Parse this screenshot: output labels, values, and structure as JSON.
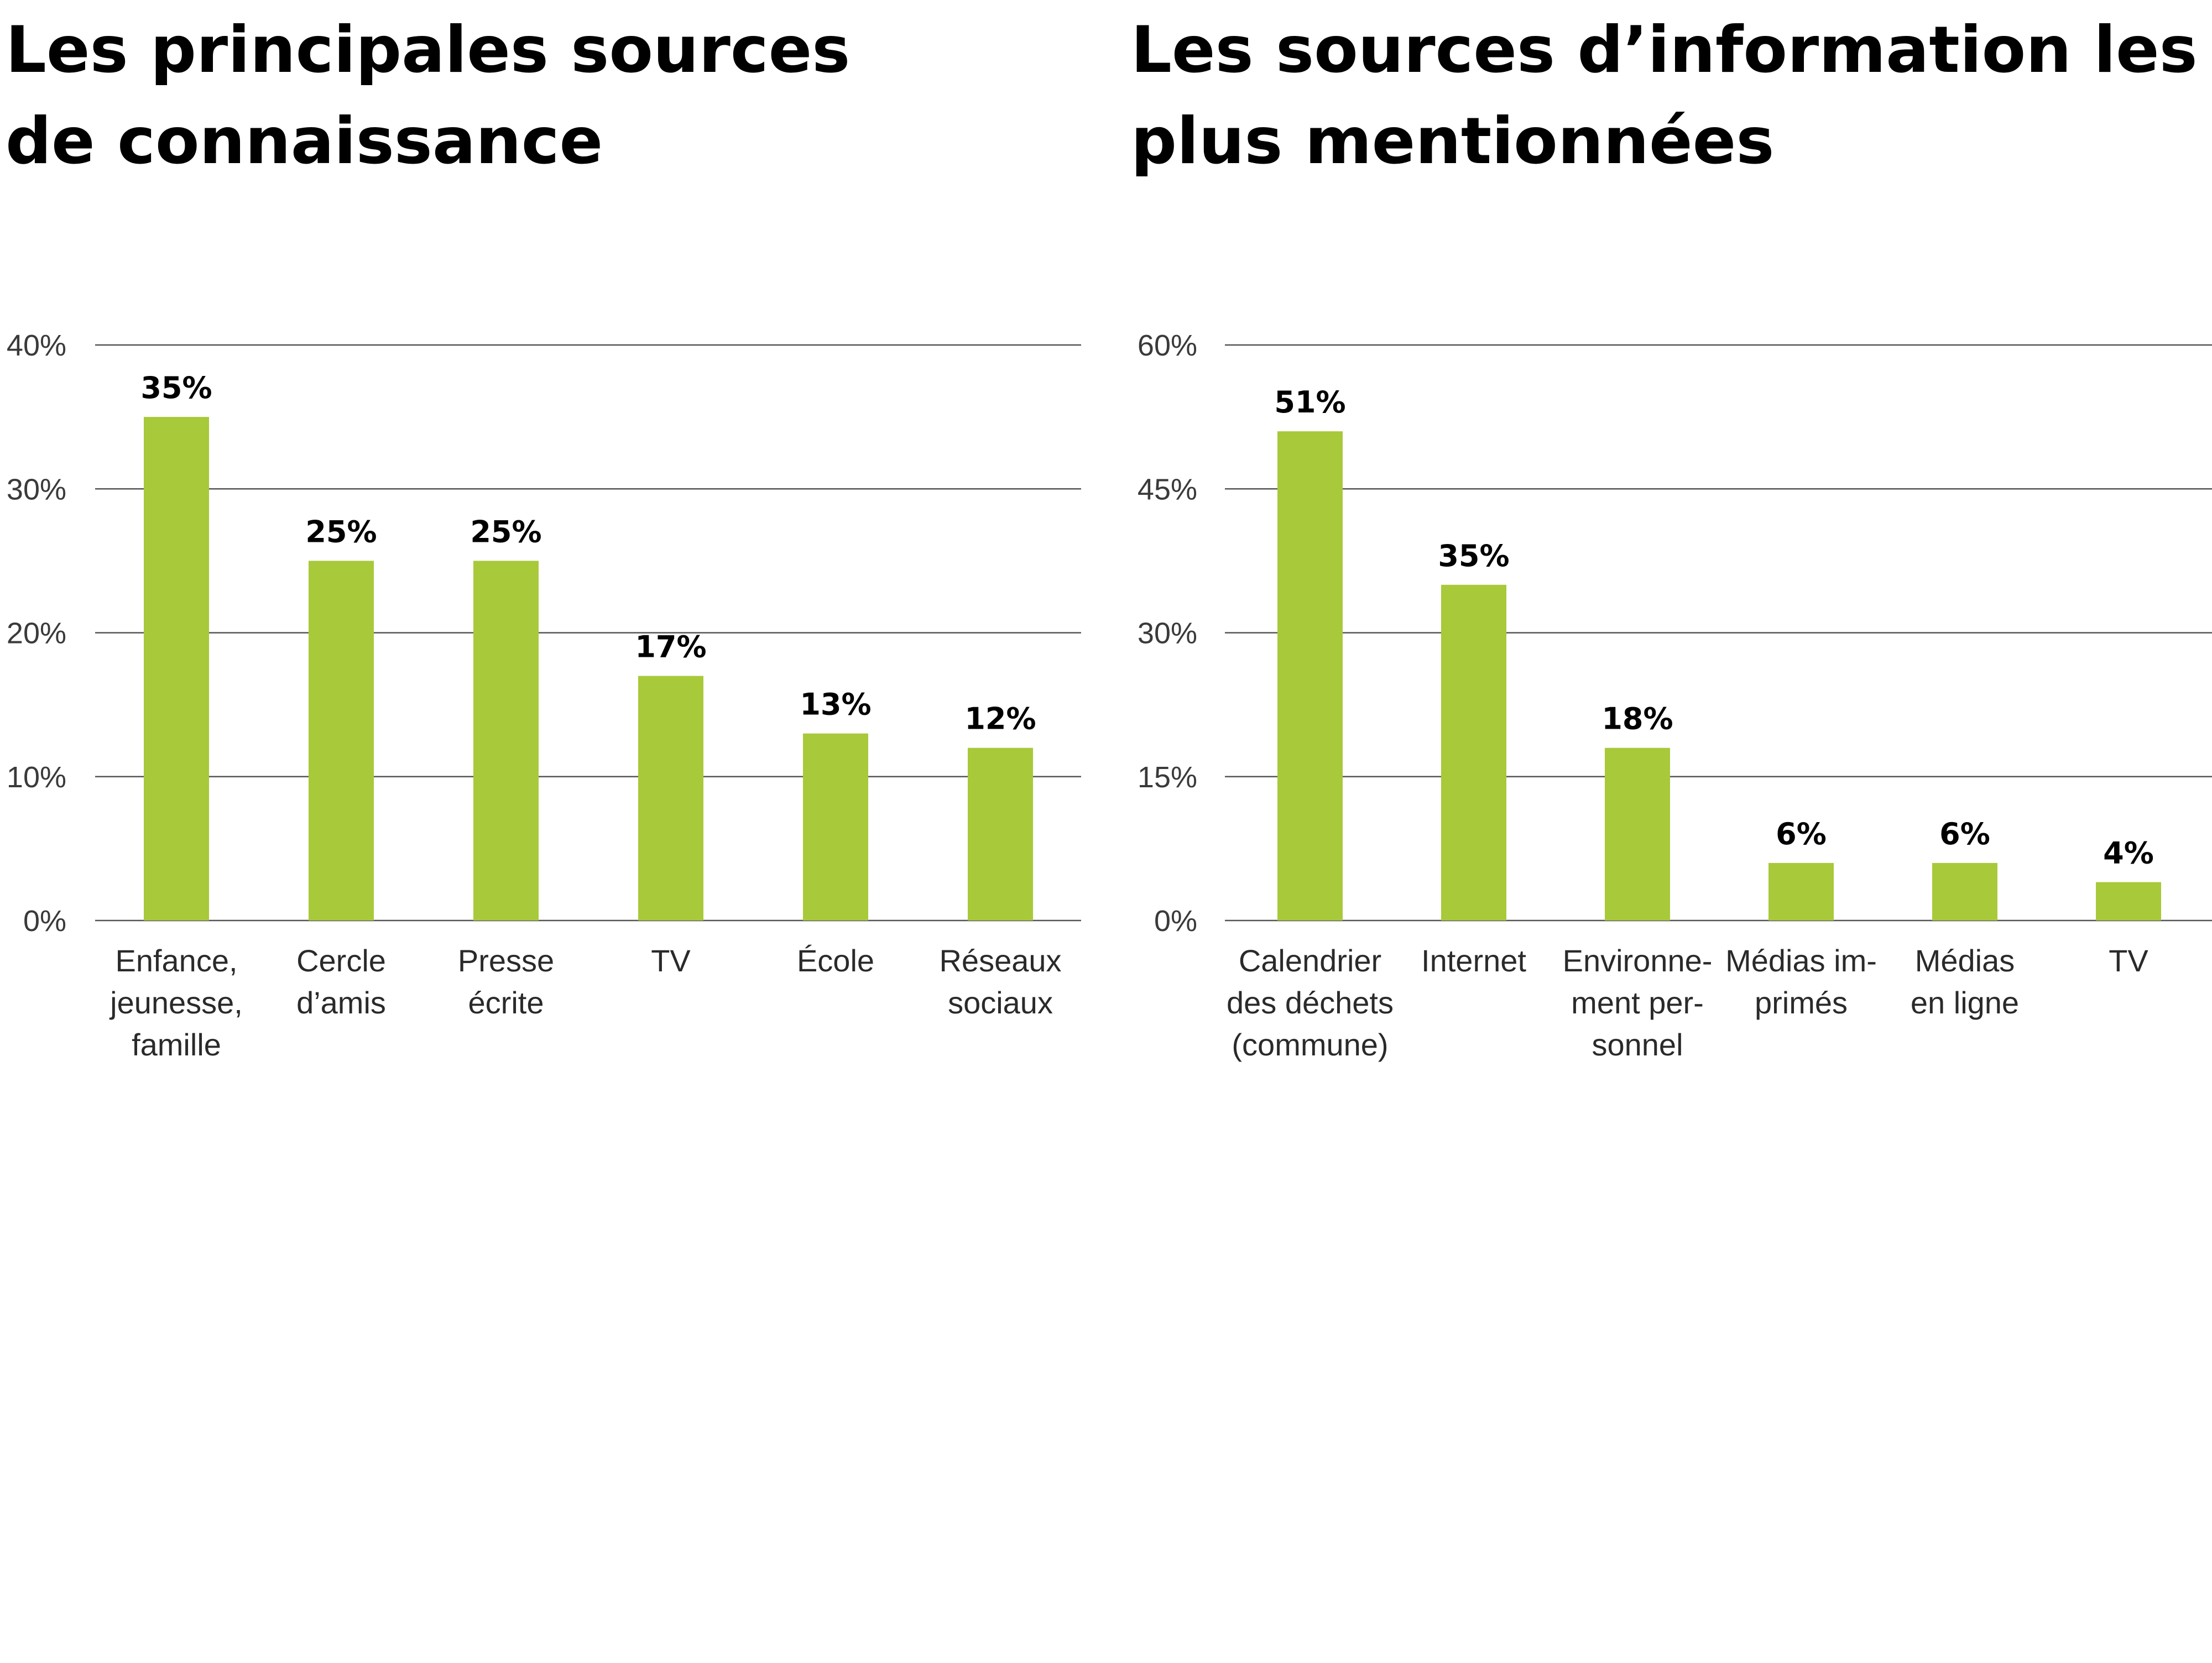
{
  "chart_data": [
    {
      "type": "bar",
      "title": "Les principales sources de connaissance",
      "title_lines": [
        "Les principales sources",
        "de connaissance"
      ],
      "categories": [
        "Enfance, jeunesse, famille",
        "Cercle d’amis",
        "Presse écrite",
        "TV",
        "École",
        "Réseaux sociaux"
      ],
      "category_lines": [
        [
          "Enfance,",
          "jeunesse,",
          "famille"
        ],
        [
          "Cercle",
          "d’amis"
        ],
        [
          "Presse",
          "écrite"
        ],
        [
          "TV"
        ],
        [
          "École"
        ],
        [
          "Réseaux",
          "sociaux"
        ]
      ],
      "values": [
        35,
        25,
        25,
        17,
        13,
        12
      ],
      "value_labels": [
        "35%",
        "25%",
        "25%",
        "17%",
        "13%",
        "12%"
      ],
      "ylim": [
        0,
        40
      ],
      "yticks": [
        0,
        10,
        20,
        30,
        40
      ],
      "ytick_labels": [
        "0%",
        "10%",
        "20%",
        "30%",
        "40%"
      ],
      "grid": true,
      "bar_color": "#a8c93a"
    },
    {
      "type": "bar",
      "title": "Les sources d’information les plus mentionnées",
      "title_lines": [
        "Les sources d’information les",
        "plus mentionnées"
      ],
      "categories": [
        "Calendrier des déchets (commune)",
        "Internet",
        "Environnement personnel",
        "Médias imprimés",
        "Médias en ligne",
        "TV"
      ],
      "category_lines": [
        [
          "Calendrier",
          "des déchets",
          "(commune)"
        ],
        [
          "Internet"
        ],
        [
          "Environne-",
          "ment per-",
          "sonnel"
        ],
        [
          "Médias im-",
          "primés"
        ],
        [
          "Médias",
          "en ligne"
        ],
        [
          "TV"
        ]
      ],
      "values": [
        51,
        35,
        18,
        6,
        6,
        4
      ],
      "value_labels": [
        "51%",
        "35%",
        "18%",
        "6%",
        "6%",
        "4%"
      ],
      "ylim": [
        0,
        60
      ],
      "yticks": [
        0,
        15,
        30,
        45,
        60
      ],
      "ytick_labels": [
        "0%",
        "15%",
        "30%",
        "45%",
        "60%"
      ],
      "grid": true,
      "bar_color": "#a8c93a"
    }
  ]
}
